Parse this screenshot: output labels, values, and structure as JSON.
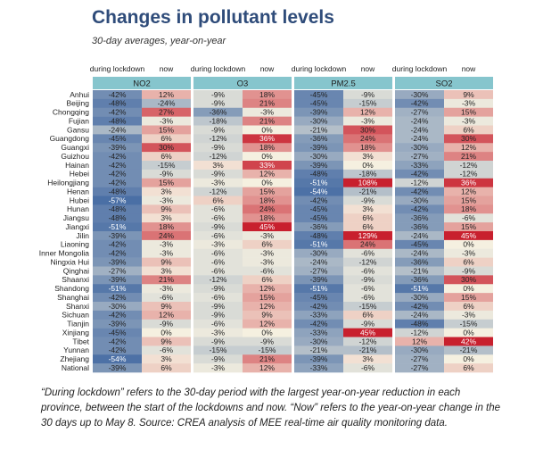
{
  "title": "Changes in pollutant levels",
  "subtitle": "30-day averages, year-on-year",
  "footnote": "“During lockdown” refers to the 30-day period with the largest year-on-year reduction in each province, between the start of the lockdowns and now. “Now” refers to the year-on-year change in the 30 days up to May 8. Source: CREA analysis of MEE real-time air quality monitoring data.",
  "chart_data": {
    "type": "heatmap",
    "column_labels": [
      "during lockdown",
      "now"
    ],
    "pollutants": [
      "NO2",
      "O3",
      "PM2.5",
      "SO2"
    ],
    "provinces": [
      "Anhui",
      "Beijing",
      "Chongqing",
      "Fujian",
      "Gansu",
      "Guangdong",
      "Guangxi",
      "Guizhou",
      "Hainan",
      "Hebei",
      "Heilongjiang",
      "Henan",
      "Hubei",
      "Hunan",
      "Jiangsu",
      "Jiangxi",
      "Jilin",
      "Liaoning",
      "Inner Mongolia",
      "Ningxia Hui",
      "Qinghai",
      "Shaanxi",
      "Shandong",
      "Shanghai",
      "Shanxi",
      "Sichuan",
      "Tianjin",
      "Xinjiang",
      "Tibet",
      "Yunnan",
      "Zhejiang",
      "National"
    ],
    "values": {
      "NO2": {
        "during lockdown": [
          -42,
          -48,
          -42,
          -48,
          -24,
          -45,
          -39,
          -42,
          -42,
          -42,
          -42,
          -48,
          -57,
          -48,
          -48,
          -51,
          -39,
          -42,
          -42,
          -39,
          -27,
          -39,
          -51,
          -42,
          -30,
          -42,
          -39,
          -45,
          -42,
          -42,
          -54,
          -39
        ],
        "now": [
          12,
          -24,
          27,
          -3,
          15,
          6,
          30,
          6,
          -15,
          -9,
          15,
          3,
          -3,
          9,
          3,
          18,
          24,
          -3,
          -3,
          9,
          3,
          21,
          -3,
          -6,
          9,
          12,
          -9,
          0,
          9,
          -6,
          3,
          6
        ]
      },
      "O3": {
        "during lockdown": [
          -9,
          -9,
          -36,
          -18,
          -9,
          -12,
          -9,
          -12,
          3,
          -9,
          -3,
          -12,
          6,
          -6,
          -6,
          -9,
          -6,
          -3,
          -6,
          -6,
          -6,
          -12,
          -9,
          -6,
          -9,
          -9,
          -6,
          -3,
          -9,
          -15,
          -9,
          -3
        ],
        "now": [
          18,
          21,
          -3,
          21,
          0,
          36,
          18,
          0,
          33,
          12,
          0,
          15,
          18,
          24,
          18,
          45,
          -3,
          6,
          -3,
          -3,
          -6,
          6,
          12,
          15,
          12,
          9,
          12,
          0,
          -9,
          -15,
          21,
          12
        ]
      },
      "PM2.5": {
        "during lockdown": [
          -45,
          -45,
          -39,
          -30,
          -21,
          -36,
          -39,
          -30,
          -39,
          -48,
          -51,
          -54,
          -42,
          -45,
          -45,
          -36,
          -48,
          -51,
          -30,
          -24,
          -27,
          -39,
          -51,
          -45,
          -42,
          -33,
          -42,
          -33,
          -30,
          -21,
          -39,
          -33
        ],
        "now": [
          -9,
          -15,
          12,
          -3,
          30,
          24,
          18,
          3,
          0,
          -18,
          108,
          -21,
          -9,
          3,
          6,
          6,
          129,
          24,
          -6,
          -12,
          -6,
          -9,
          -6,
          -6,
          -15,
          6,
          -9,
          45,
          -12,
          -21,
          3,
          -6
        ]
      },
      "SO2": {
        "during lockdown": [
          -30,
          -42,
          -27,
          -24,
          -24,
          -24,
          -30,
          -27,
          -33,
          -42,
          -12,
          -42,
          -30,
          -42,
          -36,
          -36,
          -24,
          -45,
          -24,
          -36,
          -21,
          -36,
          -51,
          -30,
          -42,
          -24,
          -48,
          -12,
          12,
          -30,
          -27,
          -27
        ],
        "now": [
          9,
          -3,
          15,
          -3,
          6,
          30,
          12,
          21,
          -12,
          -12,
          36,
          12,
          15,
          18,
          -6,
          15,
          45,
          0,
          -3,
          6,
          -9,
          30,
          0,
          15,
          6,
          -3,
          -15,
          0,
          42,
          -21,
          0,
          6
        ]
      }
    },
    "value_format": "percent",
    "colors": {
      "header_fill": "#86c5cd",
      "neg_strong": "#4a6fa5",
      "neutral": "#f5f0e0",
      "pos_strong": "#c8202e"
    }
  }
}
